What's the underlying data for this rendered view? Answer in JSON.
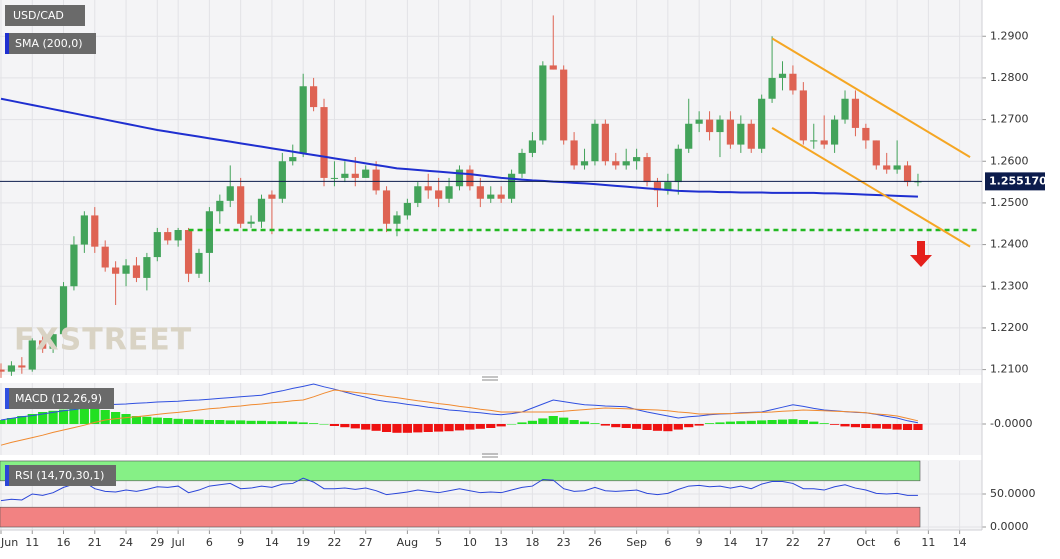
{
  "chart_data": [
    {
      "type": "candlestick",
      "title": "USD/CAD",
      "watermark": "FXSTREET",
      "categories": [
        "Jun",
        null,
        null,
        "11",
        null,
        null,
        "16",
        null,
        null,
        "21",
        null,
        null,
        "24",
        null,
        null,
        "29",
        null,
        "Jul",
        null,
        null,
        "6",
        null,
        null,
        "9",
        null,
        null,
        "14",
        null,
        null,
        "19",
        null,
        null,
        "22",
        null,
        null,
        "27",
        null,
        null,
        null,
        "Aug",
        null,
        null,
        "5",
        null,
        null,
        "10",
        null,
        null,
        "13",
        null,
        null,
        "18",
        null,
        null,
        "23",
        null,
        null,
        "26",
        null,
        null,
        null,
        "Sep",
        null,
        null,
        "6",
        null,
        null,
        "9",
        null,
        null,
        "14",
        null,
        null,
        "17",
        null,
        null,
        "22",
        null,
        null,
        "27",
        null,
        null,
        null,
        "Oct",
        null,
        null,
        "6",
        null,
        null,
        "11",
        null,
        null,
        "14",
        null,
        null
      ],
      "open": [
        1.21,
        1.2095,
        1.211,
        1.21,
        1.217,
        1.215,
        1.2185,
        1.23,
        1.24,
        1.247,
        1.2395,
        1.2345,
        1.233,
        1.235,
        1.232,
        1.237,
        1.243,
        1.241,
        1.2435,
        1.233,
        1.238,
        1.248,
        1.2505,
        1.254,
        1.245,
        1.2455,
        1.252,
        1.251,
        1.26,
        1.262,
        1.278,
        1.273,
        1.256,
        1.256,
        1.257,
        1.256,
        1.258,
        1.253,
        1.245,
        1.247,
        1.25,
        1.254,
        1.253,
        1.251,
        1.254,
        1.258,
        1.254,
        1.251,
        1.252,
        1.251,
        1.257,
        1.262,
        1.265,
        1.283,
        1.282,
        1.265,
        1.259,
        1.26,
        1.269,
        1.26,
        1.259,
        1.26,
        1.261,
        1.255,
        1.253,
        1.255,
        1.263,
        1.269,
        1.27,
        1.267,
        1.27,
        1.264,
        1.269,
        1.263,
        1.275,
        1.28,
        1.281,
        1.277,
        1.265,
        1.265,
        1.264,
        1.27,
        1.275,
        1.268,
        1.265,
        1.259,
        1.258,
        1.259,
        1.255,
        null,
        null,
        null,
        null,
        null,
        null
      ],
      "high": [
        1.2115,
        1.212,
        1.213,
        1.2175,
        1.219,
        1.22,
        1.231,
        1.242,
        1.248,
        1.249,
        1.241,
        1.236,
        1.2365,
        1.237,
        1.238,
        1.244,
        1.244,
        1.244,
        1.244,
        1.239,
        1.249,
        1.252,
        1.259,
        1.256,
        1.247,
        1.252,
        1.253,
        1.262,
        1.264,
        1.281,
        1.28,
        1.275,
        1.26,
        1.26,
        1.261,
        1.259,
        1.26,
        1.254,
        1.248,
        1.251,
        1.255,
        1.257,
        1.256,
        1.256,
        1.259,
        1.259,
        1.256,
        1.254,
        1.254,
        1.258,
        1.263,
        1.267,
        1.284,
        1.295,
        1.283,
        1.267,
        1.263,
        1.27,
        1.27,
        1.262,
        1.263,
        1.263,
        1.262,
        1.256,
        1.257,
        1.264,
        1.275,
        1.272,
        1.272,
        1.271,
        1.272,
        1.271,
        1.27,
        1.276,
        1.29,
        1.284,
        1.283,
        1.279,
        1.269,
        1.271,
        1.271,
        1.277,
        1.277,
        1.269,
        1.265,
        1.262,
        1.265,
        1.26,
        1.257,
        null,
        null,
        null,
        null,
        null,
        null
      ],
      "low": [
        1.208,
        1.2085,
        1.209,
        1.2095,
        1.214,
        1.214,
        1.218,
        1.229,
        1.238,
        1.238,
        1.2335,
        1.2255,
        1.23,
        1.231,
        1.229,
        1.236,
        1.24,
        1.2395,
        1.231,
        1.232,
        1.231,
        1.245,
        1.249,
        1.244,
        1.244,
        1.244,
        1.2425,
        1.25,
        1.259,
        1.261,
        1.272,
        1.254,
        1.254,
        1.255,
        1.254,
        1.256,
        1.252,
        1.243,
        1.242,
        1.246,
        1.249,
        1.251,
        1.249,
        1.25,
        1.253,
        1.253,
        1.249,
        1.25,
        1.25,
        1.25,
        1.256,
        1.261,
        1.264,
        1.282,
        1.264,
        1.258,
        1.258,
        1.259,
        1.259,
        1.258,
        1.258,
        1.258,
        1.254,
        1.249,
        1.252,
        1.252,
        1.262,
        1.267,
        1.265,
        1.261,
        1.263,
        1.262,
        1.262,
        1.262,
        1.274,
        1.277,
        1.276,
        1.264,
        1.263,
        1.263,
        1.262,
        1.269,
        1.266,
        1.263,
        1.258,
        1.257,
        1.257,
        1.254,
        1.254,
        null,
        null,
        null,
        null,
        null,
        null
      ],
      "close": [
        1.2095,
        1.211,
        1.2105,
        1.217,
        1.215,
        1.2185,
        1.23,
        1.24,
        1.247,
        1.2395,
        1.2345,
        1.233,
        1.235,
        1.232,
        1.237,
        1.243,
        1.241,
        1.2435,
        1.233,
        1.238,
        1.248,
        1.2505,
        1.254,
        1.245,
        1.2455,
        1.251,
        1.251,
        1.26,
        1.261,
        1.278,
        1.273,
        1.256,
        1.256,
        1.257,
        1.256,
        1.258,
        1.253,
        1.245,
        1.247,
        1.25,
        1.254,
        1.253,
        1.251,
        1.254,
        1.258,
        1.254,
        1.251,
        1.252,
        1.251,
        1.257,
        1.262,
        1.265,
        1.283,
        1.282,
        1.265,
        1.259,
        1.26,
        1.269,
        1.26,
        1.259,
        1.26,
        1.261,
        1.255,
        1.253,
        1.255,
        1.263,
        1.269,
        1.27,
        1.267,
        1.27,
        1.264,
        1.269,
        1.263,
        1.275,
        1.28,
        1.281,
        1.277,
        1.265,
        1.265,
        1.264,
        1.27,
        1.275,
        1.268,
        1.265,
        1.259,
        1.258,
        1.259,
        1.255,
        1.25517,
        null,
        null,
        null,
        null,
        null,
        null
      ],
      "up_color": "#43a35a",
      "down_color": "#de6353",
      "series": [
        {
          "name": "SMA (200,0)",
          "color": "#1f2fd0",
          "values": [
            1.275,
            1.2745,
            1.274,
            1.2735,
            1.273,
            1.2725,
            1.272,
            1.2715,
            1.271,
            1.2705,
            1.27,
            1.2695,
            1.269,
            1.2685,
            1.268,
            1.2675,
            1.2671,
            1.2667,
            1.2663,
            1.2659,
            1.2655,
            1.2651,
            1.2647,
            1.2643,
            1.2639,
            1.2635,
            1.2631,
            1.2627,
            1.2623,
            1.2619,
            1.2615,
            1.2611,
            1.2607,
            1.2603,
            1.2599,
            1.2595,
            1.2591,
            1.2587,
            1.2583,
            1.2581,
            1.2579,
            1.2577,
            1.2575,
            1.2573,
            1.2571,
            1.2569,
            1.2566,
            1.2563,
            1.256,
            1.2558,
            1.2556,
            1.2554,
            1.2553,
            1.2551,
            1.255,
            1.2548,
            1.2547,
            1.2545,
            1.2543,
            1.2541,
            1.2539,
            1.2537,
            1.2535,
            1.2533,
            1.2531,
            1.2529,
            1.2528,
            1.2527,
            1.2527,
            1.2526,
            1.2526,
            1.2525,
            1.2525,
            1.2525,
            1.2524,
            1.2524,
            1.2524,
            1.2524,
            1.2524,
            1.2523,
            1.2523,
            1.2522,
            1.2521,
            1.252,
            1.2519,
            1.2518,
            1.2517,
            1.2516,
            1.2515,
            null,
            null,
            null,
            null,
            null,
            null
          ]
        }
      ],
      "ylim": [
        1.2087,
        1.2987
      ],
      "yticks": [
        {
          "value": 1.21,
          "label": "1.2100"
        },
        {
          "value": 1.22,
          "label": "1.2200"
        },
        {
          "value": 1.23,
          "label": "1.2300"
        },
        {
          "value": 1.24,
          "label": "1.2400"
        },
        {
          "value": 1.25,
          "label": "1.2500"
        },
        {
          "value": 1.26,
          "label": "1.2600"
        },
        {
          "value": 1.27,
          "label": "1.2700"
        },
        {
          "value": 1.28,
          "label": "1.2800"
        },
        {
          "value": 1.29,
          "label": "1.2900"
        }
      ],
      "grid": true,
      "price_line": {
        "value": 1.25517,
        "label": "1.255170",
        "color": "#0c1c4c"
      },
      "support_line": {
        "x": [
          18,
          94
        ],
        "value": 1.2435,
        "color": "#22b822"
      },
      "channel": [
        {
          "x": [
            74,
            93
          ],
          "values": [
            1.2895,
            1.261
          ],
          "color": "#f5a623"
        },
        {
          "x": [
            74,
            93
          ],
          "values": [
            1.268,
            1.2395
          ],
          "color": "#f5a623"
        }
      ]
    },
    {
      "type": "macd",
      "title": "MACD (12,26,9)",
      "series": [
        {
          "color": "#3050e0",
          "values": [
            0.001,
            0.0014,
            0.0018,
            0.0021,
            0.0025,
            0.0029,
            0.0033,
            0.0036,
            0.004,
            0.0044,
            0.0048,
            0.0049,
            0.005,
            0.0052,
            0.0053,
            0.0055,
            0.0056,
            0.0057,
            0.0059,
            0.006,
            0.0062,
            0.0064,
            0.0066,
            0.0068,
            0.007,
            0.0072,
            0.0078,
            0.0083,
            0.0089,
            0.0094,
            0.01,
            0.0093,
            0.0087,
            0.008,
            0.0073,
            0.0067,
            0.006,
            0.0056,
            0.0053,
            0.0049,
            0.0046,
            0.0042,
            0.0039,
            0.0035,
            0.0033,
            0.003,
            0.0028,
            0.0025,
            0.0023,
            0.0026,
            0.003,
            0.004,
            0.005,
            0.006,
            0.0056,
            0.0052,
            0.0048,
            0.0047,
            0.0045,
            0.0044,
            0.0043,
            0.0036,
            0.003,
            0.0025,
            0.002,
            0.0015,
            0.0018,
            0.002,
            0.0023,
            0.0025,
            0.0026,
            0.0028,
            0.0029,
            0.003,
            0.0036,
            0.0042,
            0.0048,
            0.0044,
            0.0039,
            0.0035,
            0.0033,
            0.0031,
            0.0029,
            0.0028,
            0.0024,
            0.0019,
            0.0015,
            0.0008,
            0.0003,
            null,
            null,
            null,
            null,
            null,
            null
          ]
        },
        {
          "color": "#f08a30",
          "values": [
            -0.0053,
            -0.0046,
            -0.004,
            -0.0034,
            -0.0028,
            -0.0021,
            -0.0015,
            -0.0009,
            -0.0003,
            0.0004,
            0.001,
            0.0013,
            0.0016,
            0.0018,
            0.0021,
            0.0024,
            0.0027,
            0.0029,
            0.0032,
            0.0035,
            0.0038,
            0.004,
            0.0043,
            0.0045,
            0.0048,
            0.005,
            0.0053,
            0.0055,
            0.0058,
            0.006,
            0.0068,
            0.0077,
            0.0085,
            0.0082,
            0.0079,
            0.0076,
            0.0073,
            0.0069,
            0.0066,
            0.0062,
            0.0058,
            0.0055,
            0.0051,
            0.0048,
            0.0044,
            0.0041,
            0.0037,
            0.0034,
            0.003,
            0.003,
            0.003,
            0.003,
            0.003,
            0.003,
            0.0032,
            0.0034,
            0.0036,
            0.0038,
            0.004,
            0.0039,
            0.0038,
            0.0037,
            0.0036,
            0.0035,
            0.0033,
            0.003,
            0.0028,
            0.0025,
            0.0025,
            0.0026,
            0.0026,
            0.0027,
            0.0028,
            0.0029,
            0.003,
            0.0032,
            0.0033,
            0.0035,
            0.0034,
            0.0033,
            0.0032,
            0.0031,
            0.003,
            0.0028,
            0.0025,
            0.0023,
            0.002,
            0.0014,
            0.0008,
            null,
            null,
            null,
            null,
            null,
            null
          ]
        }
      ],
      "histogram": {
        "up_color": "#22e022",
        "down_color": "#ee1111",
        "values": [
          0.001,
          0.0015,
          0.002,
          0.0025,
          0.003,
          0.0033,
          0.0036,
          0.0038,
          0.004,
          0.004,
          0.0035,
          0.003,
          0.0025,
          0.002,
          0.0018,
          0.0016,
          0.0015,
          0.0013,
          0.0012,
          0.0011,
          0.001,
          0.001,
          0.0009,
          0.0009,
          0.0008,
          0.0008,
          0.0007,
          0.0007,
          0.0006,
          0.0004,
          0.0002,
          0.0,
          -0.0005,
          -0.0008,
          -0.0011,
          -0.0014,
          -0.0017,
          -0.002,
          -0.0022,
          -0.0022,
          -0.0021,
          -0.002,
          -0.0019,
          -0.0018,
          -0.0016,
          -0.0014,
          -0.0012,
          -0.001,
          -0.0006,
          0.0,
          0.0004,
          0.0008,
          0.0014,
          0.002,
          0.0016,
          0.001,
          0.0006,
          0.0002,
          -0.0004,
          -0.0008,
          -0.001,
          -0.0012,
          -0.0015,
          -0.0017,
          -0.0018,
          -0.0014,
          -0.0008,
          -0.0004,
          0.0002,
          0.0004,
          0.0006,
          0.0007,
          0.0008,
          0.0009,
          0.001,
          0.0011,
          0.0012,
          0.001,
          0.0006,
          0.0002,
          -0.0002,
          -0.0006,
          -0.0008,
          -0.001,
          -0.0011,
          -0.0012,
          -0.0014,
          -0.0015,
          -0.0015,
          null,
          null,
          null,
          null,
          null,
          null
        ]
      },
      "ylim": [
        -0.00775,
        0.01025
      ],
      "yticks": [
        {
          "value": 0,
          "label": "-0.0000"
        }
      ]
    },
    {
      "type": "line",
      "title": "RSI (14,70,30,1)",
      "series": [
        {
          "color": "#2a45d8",
          "values": [
            40,
            42,
            41,
            50,
            48,
            52,
            60,
            65,
            68,
            58,
            54,
            53,
            56,
            54,
            57,
            61,
            60,
            62,
            52,
            56,
            62,
            64,
            66,
            58,
            59,
            62,
            60,
            65,
            66,
            74,
            68,
            58,
            58,
            59,
            57,
            59,
            55,
            49,
            51,
            53,
            56,
            54,
            52,
            55,
            58,
            55,
            52,
            53,
            52,
            56,
            60,
            62,
            72,
            71,
            58,
            54,
            55,
            60,
            55,
            54,
            55,
            56,
            51,
            49,
            51,
            57,
            62,
            63,
            61,
            62,
            59,
            62,
            58,
            65,
            69,
            69,
            66,
            58,
            58,
            56,
            61,
            64,
            59,
            56,
            51,
            50,
            51,
            48,
            48,
            null,
            null,
            null,
            null,
            null,
            null
          ]
        }
      ],
      "bands": [
        {
          "from": 70,
          "to": 100,
          "color": "#86f086"
        },
        {
          "from": 0,
          "to": 30,
          "color": "#f28282"
        }
      ],
      "ylim": [
        0,
        100
      ],
      "yticks": [
        {
          "value": 50,
          "label": "50.0000"
        },
        {
          "value": 0,
          "label": "0.0000"
        }
      ]
    }
  ]
}
